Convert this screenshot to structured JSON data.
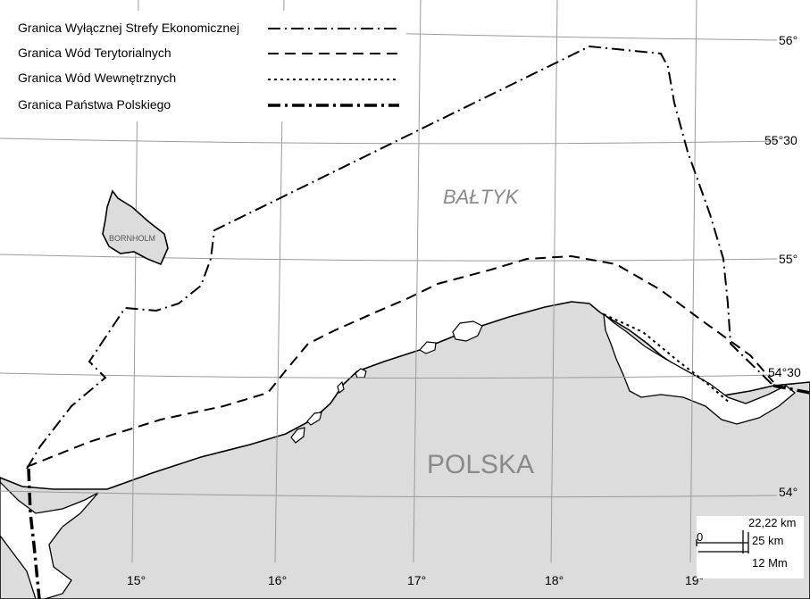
{
  "legend": {
    "items": [
      {
        "label": "Granica Wyłącznej Strefy Ekonomicznej",
        "style": "dash-dot"
      },
      {
        "label": "Granica Wód Terytorialnych",
        "style": "dashed"
      },
      {
        "label": "Granica Wód Wewnętrznych",
        "style": "dotted"
      },
      {
        "label": "Granica Państwa Polskiego",
        "style": "bold-dash-dot"
      }
    ]
  },
  "latitudes": [
    "56°",
    "55°30",
    "55°",
    "54°30",
    "54°"
  ],
  "longitudes": [
    "15°",
    "16°",
    "17°",
    "18°",
    "19°"
  ],
  "labels": {
    "sea": "BAŁTYK",
    "country": "POLSKA",
    "island": "BORNHOLM"
  },
  "scale": {
    "zero": "0",
    "km_2222": "22,22 km",
    "km_25": "25 km",
    "mm_12": "12 Mm"
  },
  "colors": {
    "land": "#dcdcdc",
    "grid": "#9a9a9a",
    "lines": "#000000",
    "label": "#8a8a8a"
  }
}
